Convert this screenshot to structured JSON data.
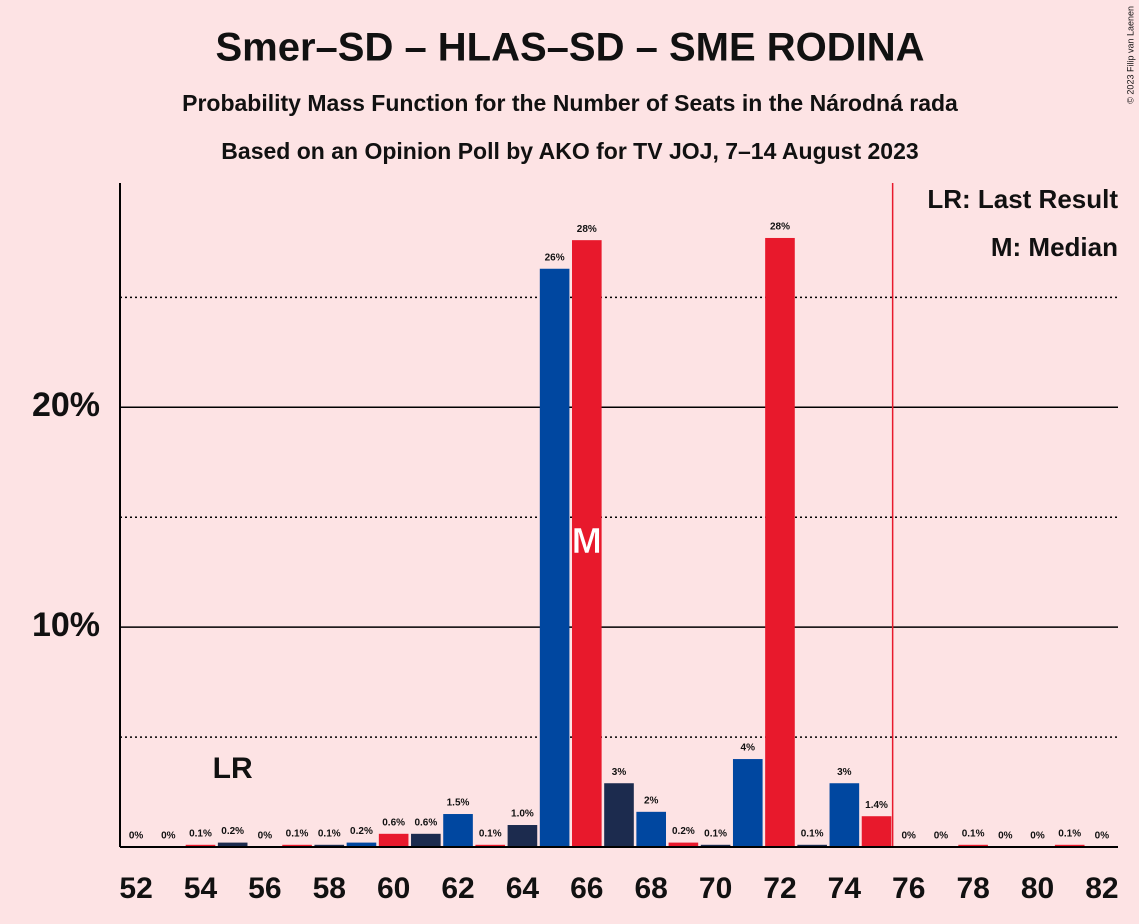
{
  "chart_data": {
    "type": "bar",
    "title": "Smer–SD – HLAS–SD – SME RODINA",
    "subtitle": "Probability Mass Function for the Number of Seats in the Národná rada",
    "subtitle2": "Based on an Opinion Poll by AKO for TV JOJ, 7–14 August 2023",
    "copyright": "© 2023 Filip van Laenen",
    "x": [
      52,
      53,
      54,
      55,
      56,
      57,
      58,
      59,
      60,
      61,
      62,
      63,
      64,
      65,
      66,
      67,
      68,
      69,
      70,
      71,
      72,
      73,
      74,
      75,
      76,
      77,
      78,
      79,
      80,
      81,
      82
    ],
    "values": [
      0,
      0,
      0.1,
      0.2,
      0,
      0.1,
      0.1,
      0.2,
      0.6,
      0.6,
      1.5,
      0.1,
      1.0,
      26.3,
      27.6,
      2.9,
      1.6,
      0.2,
      0.1,
      4.0,
      27.7,
      0.1,
      2.9,
      1.4,
      0,
      0,
      0.1,
      0,
      0,
      0.1,
      0
    ],
    "value_labels": [
      "0%",
      "0%",
      "0.1%",
      "0.2%",
      "0%",
      "0.1%",
      "0.1%",
      "0.2%",
      "0.6%",
      "0.6%",
      "1.5%",
      "0.1%",
      "1.0%",
      "26%",
      "28%",
      "3%",
      "2%",
      "0.2%",
      "0.1%",
      "4%",
      "28%",
      "0.1%",
      "3%",
      "1.4%",
      "0%",
      "0%",
      "0.1%",
      "0%",
      "0%",
      "0.1%",
      "0%"
    ],
    "colors": [
      "#1c2b4e",
      "#0047a0",
      "#e8192c",
      "#1c2b4e",
      "#0047a0",
      "#e8192c",
      "#1c2b4e",
      "#0047a0",
      "#e8192c",
      "#1c2b4e",
      "#0047a0",
      "#e8192c",
      "#1c2b4e",
      "#0047a0",
      "#e8192c",
      "#1c2b4e",
      "#0047a0",
      "#e8192c",
      "#1c2b4e",
      "#0047a0",
      "#e8192c",
      "#1c2b4e",
      "#0047a0",
      "#e8192c",
      "#1c2b4e",
      "#0047a0",
      "#e8192c",
      "#1c2b4e",
      "#0047a0",
      "#e8192c",
      "#1c2b4e"
    ],
    "xlim": [
      51.5,
      82.5
    ],
    "xticks": [
      52,
      54,
      56,
      58,
      60,
      62,
      64,
      66,
      68,
      70,
      72,
      74,
      76,
      78,
      80,
      82
    ],
    "ylim": [
      0,
      30.2
    ],
    "yticks": [
      {
        "value": 10,
        "label": "10%"
      },
      {
        "value": 20,
        "label": "20%"
      }
    ],
    "minor_yticks": [
      5,
      15,
      25
    ],
    "majority_x": 75.5,
    "majority_color": "#e8192c",
    "last_result": {
      "x": 55,
      "label": "LR"
    },
    "median": {
      "x": 66,
      "label": "M"
    },
    "legend": [
      "LR: Last Result",
      "M: Median"
    ]
  }
}
